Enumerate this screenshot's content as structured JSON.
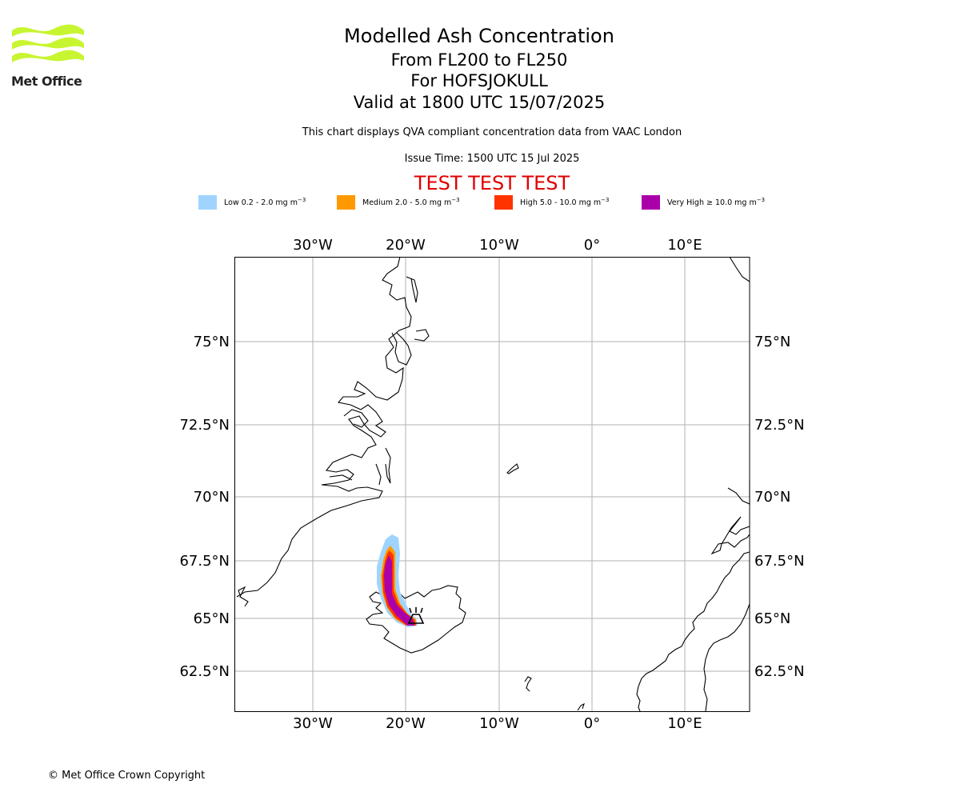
{
  "brand": {
    "logo_text": "Met Office",
    "logo_color": "#c8f531"
  },
  "header": {
    "title": "Modelled Ash Concentration",
    "levels": "From FL200 to FL250",
    "volcano": "For HOFSJOKULL",
    "valid": "Valid at 1800 UTC 15/07/2025",
    "qva_note": "This chart displays QVA compliant concentration data from VAAC London",
    "issue_time": "Issue Time: 1500 UTC 15 Jul 2025",
    "test_banner": "TEST TEST TEST"
  },
  "legend": [
    {
      "label_prefix": "Low 0.2 - 2.0 mg m",
      "unit_exp": "−3",
      "color": "#a0d4ff"
    },
    {
      "label_prefix": "Medium 2.0 - 5.0 mg m",
      "unit_exp": "−3",
      "color": "#ff9900"
    },
    {
      "label_prefix": "High 5.0 - 10.0 mg m",
      "unit_exp": "−3",
      "color": "#ff3300"
    },
    {
      "label_prefix": "Very High  ≥  10.0 mg m",
      "unit_exp": "−3",
      "color": "#aa00aa"
    }
  ],
  "map": {
    "lon_ticks": [
      "30°W",
      "20°W",
      "10°W",
      "0°",
      "10°E"
    ],
    "lat_ticks": [
      "75°N",
      "72.5°N",
      "70°N",
      "67.5°N",
      "65°N",
      "62.5°N"
    ],
    "grid": true,
    "coastline_color": "#000000",
    "grid_color": "#b0b0b0"
  },
  "footer": {
    "copyright": "© Met Office Crown Copyright"
  }
}
